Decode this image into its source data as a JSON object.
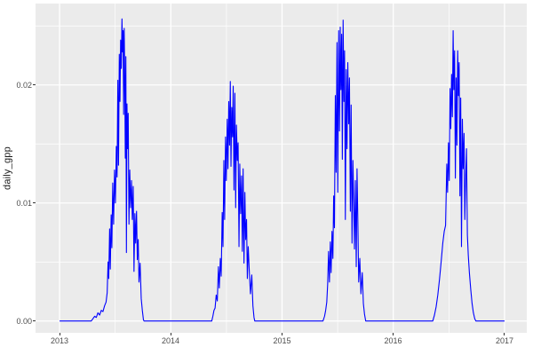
{
  "figure": {
    "background": "#FFFFFF",
    "panel_background": "#EBEBEB",
    "grid_major_color": "#FFFFFF",
    "grid_minor_color": "#FFFFFF",
    "axis_text_color": "#4D4D4D",
    "axis_title_color": "#1A1A1A",
    "tick_mark_color": "#333333",
    "line_color": "#0000FF"
  },
  "chart_data": {
    "type": "line",
    "title": "",
    "xlabel": "",
    "ylabel": "daily_gpp",
    "grid": "major+minor",
    "legend": "none",
    "xlim": [
      2012.784,
      2017.2
    ],
    "ylim": [
      -0.001,
      0.0269
    ],
    "x_axis": {
      "ticks": [
        {
          "value": 2013,
          "label": "2013"
        },
        {
          "value": 2014,
          "label": "2014"
        },
        {
          "value": 2015,
          "label": "2015"
        },
        {
          "value": 2016,
          "label": "2016"
        },
        {
          "value": 2017,
          "label": "2017"
        }
      ],
      "minor": [
        2013.5,
        2014.5,
        2015.5,
        2016.5
      ]
    },
    "y_axis": {
      "ticks": [
        {
          "value": 0.0,
          "label": "0.00"
        },
        {
          "value": 0.01,
          "label": "0.01"
        },
        {
          "value": 0.02,
          "label": "0.02"
        }
      ],
      "minor": [
        0.005,
        0.015,
        0.025
      ]
    },
    "series": [
      {
        "name": "daily_gpp",
        "color": "#0000FF",
        "points": [
          [
            2013.0,
            0
          ],
          [
            2013.06,
            0
          ],
          [
            2013.12,
            0
          ],
          [
            2013.18,
            0
          ],
          [
            2013.24,
            0
          ],
          [
            2013.285,
            0
          ],
          [
            2013.3,
            0.0002
          ],
          [
            2013.315,
            0.0004
          ],
          [
            2013.33,
            0.0003
          ],
          [
            2013.345,
            0.0007
          ],
          [
            2013.36,
            0.0005
          ],
          [
            2013.375,
            0.0009
          ],
          [
            2013.39,
            0.0008
          ],
          [
            2013.405,
            0.0013
          ],
          [
            2013.418,
            0.0016
          ],
          [
            2013.428,
            0.0024
          ],
          [
            2013.436,
            0.005
          ],
          [
            2013.442,
            0.0036
          ],
          [
            2013.45,
            0.0078
          ],
          [
            2013.456,
            0.0044
          ],
          [
            2013.464,
            0.009
          ],
          [
            2013.47,
            0.0062
          ],
          [
            2013.478,
            0.0117
          ],
          [
            2013.486,
            0.0082
          ],
          [
            2013.494,
            0.0128
          ],
          [
            2013.502,
            0.01
          ],
          [
            2013.51,
            0.0148
          ],
          [
            2013.517,
            0.0122
          ],
          [
            2013.524,
            0.0204
          ],
          [
            2013.53,
            0.0132
          ],
          [
            2013.537,
            0.0226
          ],
          [
            2013.543,
            0.0186
          ],
          [
            2013.549,
            0.0238
          ],
          [
            2013.555,
            0.0214
          ],
          [
            2013.561,
            0.0256
          ],
          [
            2013.566,
            0.0228
          ],
          [
            2013.571,
            0.0246
          ],
          [
            2013.576,
            0.0175
          ],
          [
            2013.581,
            0.0248
          ],
          [
            2013.586,
            0.0206
          ],
          [
            2013.591,
            0.0138
          ],
          [
            2013.596,
            0.0224
          ],
          [
            2013.601,
            0.0058
          ],
          [
            2013.606,
            0.0184
          ],
          [
            2013.611,
            0.0146
          ],
          [
            2013.617,
            0.0176
          ],
          [
            2013.624,
            0.0082
          ],
          [
            2013.631,
            0.0128
          ],
          [
            2013.639,
            0.0096
          ],
          [
            2013.647,
            0.0119
          ],
          [
            2013.654,
            0.0086
          ],
          [
            2013.662,
            0.0114
          ],
          [
            2013.669,
            0.0042
          ],
          [
            2013.677,
            0.0091
          ],
          [
            2013.684,
            0.0066
          ],
          [
            2013.692,
            0.0093
          ],
          [
            2013.699,
            0.0052
          ],
          [
            2013.707,
            0.0069
          ],
          [
            2013.714,
            0.0033
          ],
          [
            2013.724,
            0.0049
          ],
          [
            2013.734,
            0.0019
          ],
          [
            2013.744,
            0.0009
          ],
          [
            2013.754,
            0.0001
          ],
          [
            2013.76,
            0
          ],
          [
            2013.9,
            0
          ],
          [
            2014.05,
            0
          ],
          [
            2014.2,
            0
          ],
          [
            2014.368,
            0
          ],
          [
            2014.378,
            0.0004
          ],
          [
            2014.388,
            0.0009
          ],
          [
            2014.398,
            0.0011
          ],
          [
            2014.408,
            0.0022
          ],
          [
            2014.418,
            0.0017
          ],
          [
            2014.428,
            0.0046
          ],
          [
            2014.436,
            0.0028
          ],
          [
            2014.445,
            0.0053
          ],
          [
            2014.453,
            0.0038
          ],
          [
            2014.462,
            0.0092
          ],
          [
            2014.469,
            0.0063
          ],
          [
            2014.477,
            0.0136
          ],
          [
            2014.484,
            0.0086
          ],
          [
            2014.492,
            0.0156
          ],
          [
            2014.499,
            0.0119
          ],
          [
            2014.507,
            0.0171
          ],
          [
            2014.514,
            0.0129
          ],
          [
            2014.521,
            0.0186
          ],
          [
            2014.528,
            0.0149
          ],
          [
            2014.535,
            0.0203
          ],
          [
            2014.541,
            0.0131
          ],
          [
            2014.548,
            0.0181
          ],
          [
            2014.555,
            0.0156
          ],
          [
            2014.561,
            0.0199
          ],
          [
            2014.568,
            0.0111
          ],
          [
            2014.576,
            0.0193
          ],
          [
            2014.583,
            0.0096
          ],
          [
            2014.59,
            0.0166
          ],
          [
            2014.598,
            0.0136
          ],
          [
            2014.605,
            0.0151
          ],
          [
            2014.613,
            0.0063
          ],
          [
            2014.62,
            0.0133
          ],
          [
            2014.628,
            0.0091
          ],
          [
            2014.636,
            0.0123
          ],
          [
            2014.643,
            0.0059
          ],
          [
            2014.65,
            0.0129
          ],
          [
            2014.658,
            0.0049
          ],
          [
            2014.666,
            0.0109
          ],
          [
            2014.673,
            0.0069
          ],
          [
            2014.681,
            0.0086
          ],
          [
            2014.688,
            0.0036
          ],
          [
            2014.696,
            0.0063
          ],
          [
            2014.706,
            0.0041
          ],
          [
            2014.716,
            0.0023
          ],
          [
            2014.728,
            0.0039
          ],
          [
            2014.738,
            0.0013
          ],
          [
            2014.748,
            0.0003
          ],
          [
            2014.755,
            0
          ],
          [
            2014.9,
            0
          ],
          [
            2015.05,
            0
          ],
          [
            2015.2,
            0
          ],
          [
            2015.368,
            0
          ],
          [
            2015.382,
            0.0004
          ],
          [
            2015.392,
            0.0009
          ],
          [
            2015.402,
            0.0016
          ],
          [
            2015.41,
            0.0031
          ],
          [
            2015.418,
            0.0059
          ],
          [
            2015.426,
            0.0033
          ],
          [
            2015.434,
            0.0067
          ],
          [
            2015.441,
            0.0041
          ],
          [
            2015.449,
            0.0076
          ],
          [
            2015.457,
            0.0053
          ],
          [
            2015.464,
            0.0106
          ],
          [
            2015.471,
            0.0079
          ],
          [
            2015.479,
            0.0191
          ],
          [
            2015.486,
            0.0126
          ],
          [
            2015.494,
            0.0236
          ],
          [
            2015.501,
            0.0109
          ],
          [
            2015.509,
            0.0246
          ],
          [
            2015.516,
            0.0161
          ],
          [
            2015.523,
            0.0249
          ],
          [
            2015.529,
            0.0196
          ],
          [
            2015.536,
            0.0243
          ],
          [
            2015.542,
            0.0137
          ],
          [
            2015.549,
            0.0255
          ],
          [
            2015.556,
            0.0186
          ],
          [
            2015.562,
            0.0229
          ],
          [
            2015.569,
            0.0086
          ],
          [
            2015.577,
            0.0213
          ],
          [
            2015.584,
            0.0146
          ],
          [
            2015.591,
            0.0219
          ],
          [
            2015.599,
            0.0167
          ],
          [
            2015.606,
            0.0206
          ],
          [
            2015.614,
            0.0093
          ],
          [
            2015.621,
            0.0183
          ],
          [
            2015.629,
            0.0066
          ],
          [
            2015.637,
            0.0136
          ],
          [
            2015.644,
            0.0101
          ],
          [
            2015.651,
            0.0061
          ],
          [
            2015.659,
            0.0119
          ],
          [
            2015.667,
            0.0046
          ],
          [
            2015.674,
            0.0129
          ],
          [
            2015.682,
            0.0081
          ],
          [
            2015.689,
            0.0033
          ],
          [
            2015.699,
            0.0053
          ],
          [
            2015.709,
            0.0023
          ],
          [
            2015.721,
            0.0041
          ],
          [
            2015.731,
            0.0015
          ],
          [
            2015.741,
            0.0006
          ],
          [
            2015.752,
            0
          ],
          [
            2015.9,
            0
          ],
          [
            2016.05,
            0
          ],
          [
            2016.2,
            0
          ],
          [
            2016.355,
            0
          ],
          [
            2016.37,
            0.0005
          ],
          [
            2016.385,
            0.0012
          ],
          [
            2016.4,
            0.0022
          ],
          [
            2016.415,
            0.0035
          ],
          [
            2016.43,
            0.005
          ],
          [
            2016.445,
            0.0066
          ],
          [
            2016.458,
            0.0076
          ],
          [
            2016.47,
            0.0081
          ],
          [
            2016.481,
            0.0133
          ],
          [
            2016.488,
            0.0109
          ],
          [
            2016.496,
            0.0151
          ],
          [
            2016.503,
            0.0119
          ],
          [
            2016.51,
            0.0197
          ],
          [
            2016.517,
            0.0163
          ],
          [
            2016.524,
            0.0209
          ],
          [
            2016.531,
            0.0173
          ],
          [
            2016.538,
            0.0246
          ],
          [
            2016.544,
            0.0196
          ],
          [
            2016.551,
            0.0229
          ],
          [
            2016.558,
            0.0121
          ],
          [
            2016.565,
            0.0206
          ],
          [
            2016.572,
            0.0149
          ],
          [
            2016.579,
            0.0229
          ],
          [
            2016.586,
            0.0191
          ],
          [
            2016.592,
            0.0219
          ],
          [
            2016.599,
            0.0106
          ],
          [
            2016.606,
            0.0189
          ],
          [
            2016.613,
            0.0063
          ],
          [
            2016.621,
            0.0171
          ],
          [
            2016.628,
            0.0129
          ],
          [
            2016.636,
            0.0159
          ],
          [
            2016.643,
            0.0086
          ],
          [
            2016.65,
            0.0119
          ],
          [
            2016.658,
            0.0146
          ],
          [
            2016.666,
            0.0073
          ],
          [
            2016.674,
            0.0056
          ],
          [
            2016.684,
            0.0041
          ],
          [
            2016.696,
            0.0027
          ],
          [
            2016.708,
            0.0015
          ],
          [
            2016.72,
            0.0007
          ],
          [
            2016.732,
            0.0002
          ],
          [
            2016.742,
            0
          ],
          [
            2016.85,
            0
          ],
          [
            2016.95,
            0
          ],
          [
            2017.0,
            0
          ]
        ]
      }
    ]
  }
}
